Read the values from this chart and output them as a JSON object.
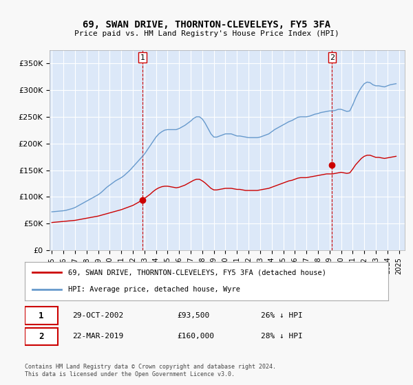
{
  "title": "69, SWAN DRIVE, THORNTON-CLEVELEYS, FY5 3FA",
  "subtitle": "Price paid vs. HM Land Registry's House Price Index (HPI)",
  "legend_label1": "69, SWAN DRIVE, THORNTON-CLEVELEYS, FY5 3FA (detached house)",
  "legend_label2": "HPI: Average price, detached house, Wyre",
  "transaction1_label": "1",
  "transaction1_date": "29-OCT-2002",
  "transaction1_price": "£93,500",
  "transaction1_hpi": "26% ↓ HPI",
  "transaction2_label": "2",
  "transaction2_date": "22-MAR-2019",
  "transaction2_price": "£160,000",
  "transaction2_hpi": "28% ↓ HPI",
  "footer": "Contains HM Land Registry data © Crown copyright and database right 2024.\nThis data is licensed under the Open Government Licence v3.0.",
  "bg_color": "#f0f4ff",
  "plot_bg_color": "#dce8f8",
  "red_color": "#cc0000",
  "blue_color": "#6699cc",
  "marker_red": "#cc0000",
  "marker_blue": "#6699cc",
  "ylim_min": 0,
  "ylim_max": 375000,
  "yticks": [
    0,
    50000,
    100000,
    150000,
    200000,
    250000,
    300000,
    350000
  ],
  "ytick_labels": [
    "£0",
    "£50K",
    "£100K",
    "£150K",
    "£200K",
    "£250K",
    "£300K",
    "£350K"
  ],
  "xtick_years": [
    1995,
    1996,
    1997,
    1998,
    1999,
    2000,
    2001,
    2002,
    2003,
    2004,
    2005,
    2006,
    2007,
    2008,
    2009,
    2010,
    2011,
    2012,
    2013,
    2014,
    2015,
    2016,
    2017,
    2018,
    2019,
    2020,
    2021,
    2022,
    2023,
    2024,
    2025
  ],
  "vline1_x": 2002.83,
  "vline2_x": 2019.22,
  "marker1_x": 2002.83,
  "marker1_y": 93500,
  "marker2_x": 2019.22,
  "marker2_y": 160000,
  "hpi_years": [
    1995.0,
    1995.25,
    1995.5,
    1995.75,
    1996.0,
    1996.25,
    1996.5,
    1996.75,
    1997.0,
    1997.25,
    1997.5,
    1997.75,
    1998.0,
    1998.25,
    1998.5,
    1998.75,
    1999.0,
    1999.25,
    1999.5,
    1999.75,
    2000.0,
    2000.25,
    2000.5,
    2000.75,
    2001.0,
    2001.25,
    2001.5,
    2001.75,
    2002.0,
    2002.25,
    2002.5,
    2002.75,
    2003.0,
    2003.25,
    2003.5,
    2003.75,
    2004.0,
    2004.25,
    2004.5,
    2004.75,
    2005.0,
    2005.25,
    2005.5,
    2005.75,
    2006.0,
    2006.25,
    2006.5,
    2006.75,
    2007.0,
    2007.25,
    2007.5,
    2007.75,
    2008.0,
    2008.25,
    2008.5,
    2008.75,
    2009.0,
    2009.25,
    2009.5,
    2009.75,
    2010.0,
    2010.25,
    2010.5,
    2010.75,
    2011.0,
    2011.25,
    2011.5,
    2011.75,
    2012.0,
    2012.25,
    2012.5,
    2012.75,
    2013.0,
    2013.25,
    2013.5,
    2013.75,
    2014.0,
    2014.25,
    2014.5,
    2014.75,
    2015.0,
    2015.25,
    2015.5,
    2015.75,
    2016.0,
    2016.25,
    2016.5,
    2016.75,
    2017.0,
    2017.25,
    2017.5,
    2017.75,
    2018.0,
    2018.25,
    2018.5,
    2018.75,
    2019.0,
    2019.25,
    2019.5,
    2019.75,
    2020.0,
    2020.25,
    2020.5,
    2020.75,
    2021.0,
    2021.25,
    2021.5,
    2021.75,
    2022.0,
    2022.25,
    2022.5,
    2022.75,
    2023.0,
    2023.25,
    2023.5,
    2023.75,
    2024.0,
    2024.25,
    2024.5,
    2024.75
  ],
  "hpi_values": [
    72000,
    72500,
    73000,
    73500,
    74000,
    75000,
    76500,
    78000,
    80000,
    83000,
    86000,
    89000,
    92000,
    95000,
    98000,
    101000,
    104000,
    108000,
    113000,
    118000,
    122000,
    126000,
    130000,
    133000,
    136000,
    140000,
    145000,
    150000,
    156000,
    162000,
    168000,
    174000,
    180000,
    188000,
    196000,
    204000,
    212000,
    218000,
    222000,
    225000,
    226000,
    226000,
    226000,
    226000,
    228000,
    231000,
    234000,
    238000,
    242000,
    247000,
    250000,
    250000,
    246000,
    238000,
    228000,
    218000,
    212000,
    212000,
    214000,
    216000,
    218000,
    218000,
    218000,
    216000,
    214000,
    214000,
    213000,
    212000,
    211000,
    211000,
    211000,
    211000,
    212000,
    214000,
    216000,
    218000,
    222000,
    226000,
    229000,
    232000,
    235000,
    238000,
    241000,
    243000,
    246000,
    249000,
    250000,
    250000,
    250000,
    251000,
    253000,
    255000,
    256000,
    258000,
    259000,
    260000,
    261000,
    261000,
    262000,
    264000,
    264000,
    262000,
    260000,
    261000,
    272000,
    285000,
    296000,
    305000,
    312000,
    315000,
    314000,
    310000,
    308000,
    308000,
    307000,
    306000,
    308000,
    310000,
    311000,
    312000
  ],
  "red_years": [
    1995.0,
    1995.25,
    1995.5,
    1995.75,
    1996.0,
    1996.25,
    1996.5,
    1996.75,
    1997.0,
    1997.25,
    1997.5,
    1997.75,
    1998.0,
    1998.25,
    1998.5,
    1998.75,
    1999.0,
    1999.25,
    1999.5,
    1999.75,
    2000.0,
    2000.25,
    2000.5,
    2000.75,
    2001.0,
    2001.25,
    2001.5,
    2001.75,
    2002.0,
    2002.25,
    2002.5,
    2002.75,
    2003.0,
    2003.25,
    2003.5,
    2003.75,
    2004.0,
    2004.25,
    2004.5,
    2004.75,
    2005.0,
    2005.25,
    2005.5,
    2005.75,
    2006.0,
    2006.25,
    2006.5,
    2006.75,
    2007.0,
    2007.25,
    2007.5,
    2007.75,
    2008.0,
    2008.25,
    2008.5,
    2008.75,
    2009.0,
    2009.25,
    2009.5,
    2009.75,
    2010.0,
    2010.25,
    2010.5,
    2010.75,
    2011.0,
    2011.25,
    2011.5,
    2011.75,
    2012.0,
    2012.25,
    2012.5,
    2012.75,
    2013.0,
    2013.25,
    2013.5,
    2013.75,
    2014.0,
    2014.25,
    2014.5,
    2014.75,
    2015.0,
    2015.25,
    2015.5,
    2015.75,
    2016.0,
    2016.25,
    2016.5,
    2016.75,
    2017.0,
    2017.25,
    2017.5,
    2017.75,
    2018.0,
    2018.25,
    2018.5,
    2018.75,
    2019.0,
    2019.25,
    2019.5,
    2019.75,
    2020.0,
    2020.25,
    2020.5,
    2020.75,
    2021.0,
    2021.25,
    2021.5,
    2021.75,
    2022.0,
    2022.25,
    2022.5,
    2022.75,
    2023.0,
    2023.25,
    2023.5,
    2023.75,
    2024.0,
    2024.25,
    2024.5,
    2024.75
  ],
  "red_values": [
    52000,
    52500,
    53000,
    53500,
    54000,
    54500,
    55000,
    55500,
    56000,
    57000,
    58000,
    59000,
    60000,
    61000,
    62000,
    63000,
    64000,
    65500,
    67000,
    68500,
    70000,
    71500,
    73000,
    74500,
    76000,
    78000,
    80000,
    82000,
    84000,
    87000,
    90000,
    93500,
    97000,
    101000,
    105000,
    110000,
    114000,
    117000,
    119000,
    120000,
    120000,
    119000,
    118000,
    117000,
    118000,
    120000,
    122000,
    125000,
    128000,
    131000,
    133000,
    133000,
    130000,
    126000,
    121000,
    116000,
    113000,
    113000,
    114000,
    115000,
    116000,
    116000,
    116000,
    115000,
    114000,
    114000,
    113000,
    112000,
    112000,
    112000,
    112000,
    112000,
    113000,
    114000,
    115000,
    116000,
    118000,
    120000,
    122000,
    124000,
    126000,
    128000,
    130000,
    131000,
    133000,
    135000,
    136000,
    136000,
    136000,
    137000,
    138000,
    139000,
    140000,
    141000,
    142000,
    143000,
    143000,
    143000,
    144000,
    145000,
    146000,
    145000,
    144000,
    145000,
    152000,
    160000,
    166000,
    172000,
    176000,
    178000,
    178000,
    176000,
    174000,
    174000,
    173000,
    172000,
    173000,
    174000,
    175000,
    176000
  ]
}
